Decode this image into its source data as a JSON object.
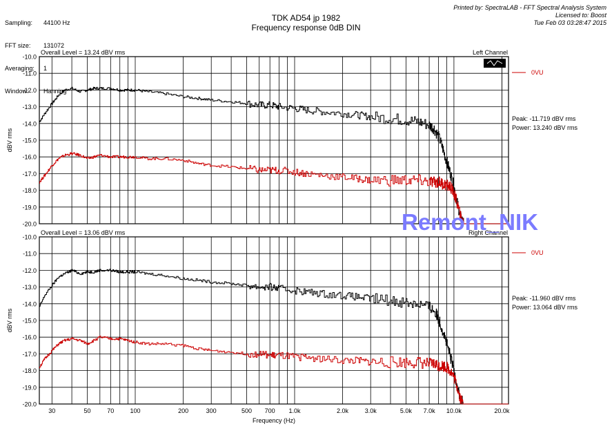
{
  "header_left": [
    {
      "label": "Sampling:",
      "value": "44100 Hz"
    },
    {
      "label": "FFT size:",
      "value": "131072"
    },
    {
      "label": "Averaging:",
      "value": "1"
    },
    {
      "label": "Window:",
      "value": "Hanning"
    }
  ],
  "header_right": [
    "Printed by: SpectraLAB - FFT Spectral Analysis System",
    "Licensed to: Boost",
    "Tue Feb 03 03:28:47 2015"
  ],
  "title_line1": "TDK AD54 jp 1982",
  "title_line2": "Frequency response 0dB DIN",
  "watermark": "Remont_NIK",
  "legend_label": "0VU",
  "colors": {
    "black_trace": "#000000",
    "red_trace": "#cc0000",
    "watermark": "#7b7bff",
    "grid": "#000000"
  },
  "chart_data": [
    {
      "type": "line",
      "panel_label": "Left Channel",
      "overall_level": "Overall Level = 13.24 dBV rms",
      "peak_text": "Peak: -11.719 dBV rms",
      "power_text": "Power: 13.240 dBV rms",
      "ylabel": "dBV rms",
      "ylim": [
        -20.0,
        -10.0
      ],
      "y_ticks": [
        "-10.0",
        "-11.0",
        "-12.0",
        "-13.0",
        "-14.0",
        "-15.0",
        "-16.0",
        "-17.0",
        "-18.0",
        "-19.0",
        "-20.0"
      ],
      "xscale": "log",
      "xlim": [
        25,
        22000
      ],
      "series": [
        {
          "name": "",
          "color": "#000000",
          "x": [
            25,
            27,
            30,
            33,
            36,
            40,
            45,
            50,
            55,
            60,
            70,
            80,
            90,
            100,
            120,
            150,
            200,
            250,
            300,
            400,
            500,
            600,
            700,
            800,
            1000,
            1200,
            1500,
            2000,
            2500,
            3000,
            4000,
            5000,
            6000,
            7000,
            7500,
            8000,
            8500,
            9000,
            9500,
            10000,
            10500,
            11000,
            11500
          ],
          "y": [
            -13.9,
            -13.4,
            -12.8,
            -12.3,
            -12.0,
            -11.9,
            -12.1,
            -12.0,
            -11.9,
            -11.9,
            -11.9,
            -12.0,
            -12.0,
            -12.0,
            -12.1,
            -12.2,
            -12.4,
            -12.5,
            -12.6,
            -12.7,
            -12.8,
            -12.9,
            -12.9,
            -13.0,
            -13.1,
            -13.2,
            -13.3,
            -13.4,
            -13.5,
            -13.6,
            -13.7,
            -13.8,
            -13.9,
            -14.1,
            -14.3,
            -14.8,
            -15.5,
            -16.3,
            -17.0,
            -17.8,
            -18.8,
            -19.6,
            -20.0
          ]
        },
        {
          "name": "",
          "color": "#cc0000",
          "x": [
            25,
            27,
            30,
            33,
            36,
            40,
            45,
            50,
            55,
            60,
            70,
            80,
            90,
            100,
            120,
            150,
            200,
            250,
            300,
            400,
            500,
            600,
            700,
            800,
            1000,
            1200,
            1500,
            2000,
            2500,
            3000,
            4000,
            5000,
            6000,
            7000,
            7500,
            8000,
            8500,
            9000,
            9500,
            10000,
            10500,
            11000,
            11500
          ],
          "y": [
            -17.5,
            -17.1,
            -16.5,
            -16.1,
            -15.9,
            -15.8,
            -15.9,
            -16.1,
            -16.0,
            -15.9,
            -16.0,
            -16.0,
            -16.0,
            -16.0,
            -16.1,
            -16.1,
            -16.2,
            -16.4,
            -16.5,
            -16.6,
            -16.7,
            -16.8,
            -16.8,
            -16.8,
            -16.9,
            -17.0,
            -17.1,
            -17.2,
            -17.3,
            -17.4,
            -17.4,
            -17.4,
            -17.4,
            -17.5,
            -17.5,
            -17.5,
            -17.6,
            -17.7,
            -17.8,
            -18.2,
            -18.8,
            -19.6,
            -20.0
          ]
        }
      ]
    },
    {
      "type": "line",
      "panel_label": "Right Channel",
      "overall_level": "Overall Level = 13.06 dBV rms",
      "peak_text": "Peak: -11.960 dBV rms",
      "power_text": "Power: 13.064 dBV rms",
      "ylabel": "dBV rms",
      "xlabel": "Frequency (Hz)",
      "ylim": [
        -20.0,
        -10.0
      ],
      "y_ticks": [
        "-10.0",
        "-11.0",
        "-12.0",
        "-13.0",
        "-14.0",
        "-15.0",
        "-16.0",
        "-17.0",
        "-18.0",
        "-19.0",
        "-20.0"
      ],
      "xscale": "log",
      "xlim": [
        25,
        22000
      ],
      "x_ticks": [
        {
          "v": 30,
          "t": "30"
        },
        {
          "v": 50,
          "t": "50"
        },
        {
          "v": 70,
          "t": "70"
        },
        {
          "v": 100,
          "t": "100"
        },
        {
          "v": 200,
          "t": "200"
        },
        {
          "v": 300,
          "t": "300"
        },
        {
          "v": 500,
          "t": "500"
        },
        {
          "v": 700,
          "t": "700"
        },
        {
          "v": 1000,
          "t": "1.0k"
        },
        {
          "v": 2000,
          "t": "2.0k"
        },
        {
          "v": 3000,
          "t": "3.0k"
        },
        {
          "v": 5000,
          "t": "5.0k"
        },
        {
          "v": 7000,
          "t": "7.0k"
        },
        {
          "v": 10000,
          "t": "10.0k"
        },
        {
          "v": 20000,
          "t": "20.0k"
        }
      ],
      "series": [
        {
          "name": "",
          "color": "#000000",
          "x": [
            25,
            27,
            30,
            33,
            36,
            40,
            45,
            50,
            55,
            60,
            70,
            80,
            90,
            100,
            120,
            150,
            200,
            250,
            300,
            400,
            500,
            600,
            700,
            800,
            1000,
            1200,
            1500,
            2000,
            2500,
            3000,
            4000,
            5000,
            6000,
            7000,
            7500,
            8000,
            8500,
            9000,
            9500,
            10000,
            10500,
            11000,
            11500
          ],
          "y": [
            -14.2,
            -13.5,
            -12.9,
            -12.4,
            -12.2,
            -12.0,
            -12.2,
            -12.1,
            -12.1,
            -12.0,
            -12.0,
            -12.1,
            -12.1,
            -12.1,
            -12.2,
            -12.3,
            -12.5,
            -12.6,
            -12.7,
            -12.8,
            -12.9,
            -13.0,
            -13.0,
            -13.1,
            -13.2,
            -13.3,
            -13.4,
            -13.5,
            -13.6,
            -13.7,
            -13.8,
            -13.9,
            -14.0,
            -14.2,
            -14.4,
            -14.9,
            -15.6,
            -16.4,
            -17.2,
            -18.0,
            -19.0,
            -19.7,
            -20.0
          ]
        },
        {
          "name": "",
          "color": "#cc0000",
          "x": [
            25,
            27,
            30,
            33,
            36,
            40,
            45,
            50,
            55,
            60,
            70,
            80,
            90,
            100,
            120,
            150,
            200,
            250,
            300,
            400,
            500,
            600,
            700,
            800,
            1000,
            1200,
            1500,
            2000,
            2500,
            3000,
            4000,
            5000,
            6000,
            7000,
            7500,
            8000,
            8500,
            9000,
            9500,
            10000,
            10500,
            11000,
            11500
          ],
          "y": [
            -17.8,
            -17.3,
            -16.8,
            -16.4,
            -16.2,
            -16.1,
            -16.2,
            -16.4,
            -16.2,
            -16.0,
            -16.1,
            -16.1,
            -16.2,
            -16.3,
            -16.4,
            -16.4,
            -16.5,
            -16.7,
            -16.8,
            -16.9,
            -17.0,
            -17.0,
            -17.1,
            -17.1,
            -17.2,
            -17.2,
            -17.3,
            -17.4,
            -17.4,
            -17.5,
            -17.5,
            -17.5,
            -17.5,
            -17.6,
            -17.6,
            -17.7,
            -17.7,
            -17.8,
            -18.0,
            -18.4,
            -19.0,
            -19.7,
            -20.0
          ]
        }
      ]
    }
  ]
}
